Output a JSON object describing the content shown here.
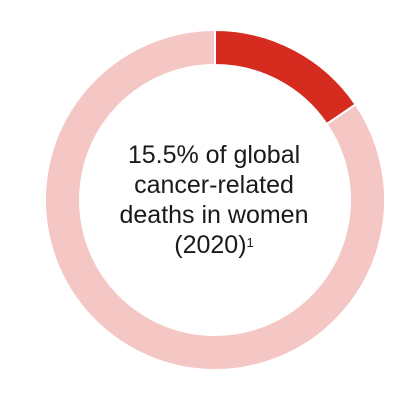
{
  "chart_data": {
    "type": "pie",
    "style": "donut",
    "slices": [
      {
        "label": "share",
        "value": 15.5,
        "color": "#d62b1f"
      },
      {
        "label": "rest",
        "value": 84.5,
        "color": "#f4c6c4"
      }
    ],
    "center_text": {
      "line1": "15.5% of global",
      "line2": "cancer-related",
      "line3": "deaths in women",
      "line4": "(2020)",
      "footnote": "1"
    }
  }
}
